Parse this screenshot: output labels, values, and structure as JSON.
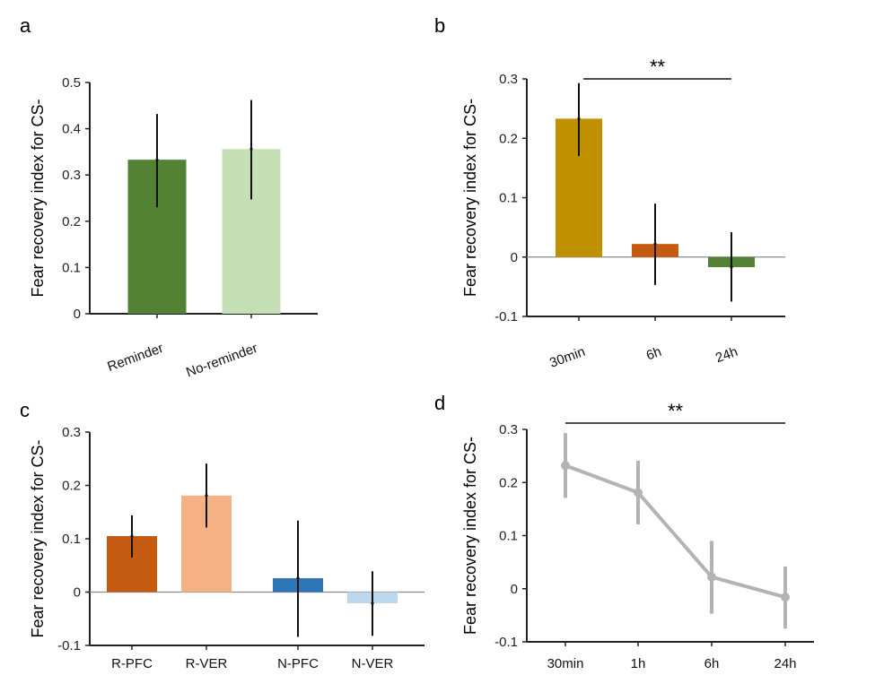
{
  "chart_data": [
    {
      "panel": "a",
      "type": "bar",
      "title": "",
      "xlabel": "",
      "ylabel": "Fear recovery index for CS-",
      "ylim": [
        0,
        0.5
      ],
      "yticks": [
        0,
        0.1,
        0.2,
        0.3,
        0.4,
        0.5
      ],
      "ytick_labels": [
        "0",
        "0.1",
        "0.2",
        "0.3",
        "0.4",
        "0.5"
      ],
      "categories": [
        "Reminder",
        "No-reminder"
      ],
      "values": [
        0.333,
        0.356
      ],
      "error_low": [
        0.23,
        0.247
      ],
      "error_high": [
        0.432,
        0.462
      ],
      "colors": [
        "#548235",
        "#c5e0b4"
      ],
      "xtick_rotation": "slanted",
      "grid": false,
      "annotations": []
    },
    {
      "panel": "b",
      "type": "bar",
      "title": "",
      "xlabel": "",
      "ylabel": "Fear recovery index for CS-",
      "ylim": [
        -0.1,
        0.3
      ],
      "yticks": [
        -0.1,
        0,
        0.1,
        0.2,
        0.3
      ],
      "ytick_labels": [
        "-0.1",
        "0",
        "0.1",
        "0.2",
        "0.3"
      ],
      "categories": [
        "30min",
        "6h",
        "24h"
      ],
      "values": [
        0.233,
        0.022,
        -0.017
      ],
      "error_low": [
        0.17,
        -0.047,
        -0.075
      ],
      "error_high": [
        0.293,
        0.09,
        0.042
      ],
      "colors": [
        "#bf9000",
        "#c55a11",
        "#548235"
      ],
      "xtick_rotation": "slanted",
      "grid": false,
      "annotations": [
        {
          "text": "**",
          "from": "30min",
          "to": "24h"
        }
      ]
    },
    {
      "panel": "c",
      "type": "bar",
      "title": "",
      "xlabel": "",
      "ylabel": "Fear recovery index for CS-",
      "ylim": [
        -0.1,
        0.3
      ],
      "yticks": [
        -0.1,
        0,
        0.1,
        0.2,
        0.3
      ],
      "ytick_labels": [
        "-0.1",
        "0",
        "0.1",
        "0.2",
        "0.3"
      ],
      "categories": [
        "R-PFC",
        "R-VER",
        "N-PFC",
        "N-VER"
      ],
      "values": [
        0.105,
        0.181,
        0.026,
        -0.021
      ],
      "error_low": [
        0.065,
        0.121,
        -0.084,
        -0.082
      ],
      "error_high": [
        0.144,
        0.241,
        0.134,
        0.039
      ],
      "colors": [
        "#c55a11",
        "#f4b183",
        "#2e75b6",
        "#bdd7ee"
      ],
      "xtick_rotation": "none",
      "grid": false,
      "annotations": []
    },
    {
      "panel": "d",
      "type": "line",
      "title": "",
      "xlabel": "",
      "ylabel": "Fear recovery index for CS-",
      "ylim": [
        -0.1,
        0.3
      ],
      "yticks": [
        -0.1,
        0,
        0.1,
        0.2,
        0.3
      ],
      "ytick_labels": [
        "-0.1",
        "0",
        "0.1",
        "0.2",
        "0.3"
      ],
      "categories": [
        "30min",
        "1h",
        "6h",
        "24h"
      ],
      "values": [
        0.232,
        0.181,
        0.022,
        -0.016
      ],
      "error_low": [
        0.171,
        0.121,
        -0.047,
        -0.075
      ],
      "error_high": [
        0.293,
        0.241,
        0.09,
        0.042
      ],
      "colors": [
        "#b3b3b3"
      ],
      "xtick_rotation": "none",
      "grid": false,
      "annotations": [
        {
          "text": "**",
          "from": "30min",
          "to": "24h"
        }
      ]
    }
  ]
}
